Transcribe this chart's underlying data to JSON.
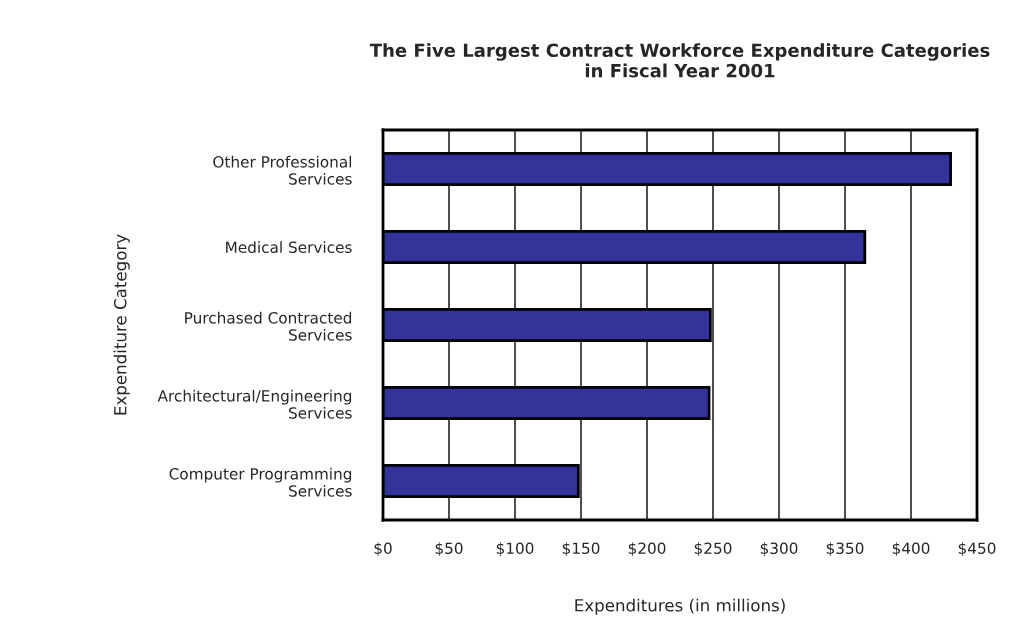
{
  "chart_data": {
    "type": "bar",
    "orientation": "horizontal",
    "title": "The Five Largest Contract Workforce Expenditure Categories\nin Fiscal Year 2001",
    "xlabel": "Expenditures (in millions)",
    "ylabel": "Expenditure Category",
    "categories": [
      "Other Professional\nServices",
      "Medical Services",
      "Purchased Contracted\nServices",
      "Architectural/Engineering\nServices",
      "Computer Programming\nServices"
    ],
    "values": [
      430,
      365,
      248,
      247,
      148
    ],
    "color": "#333399",
    "xlim": [
      0,
      450
    ],
    "xticks": [
      {
        "value": 0,
        "label": "$0"
      },
      {
        "value": 50,
        "label": "$50"
      },
      {
        "value": 100,
        "label": "$100"
      },
      {
        "value": 150,
        "label": "$150"
      },
      {
        "value": 200,
        "label": "$200"
      },
      {
        "value": 250,
        "label": "$250"
      },
      {
        "value": 300,
        "label": "$300"
      },
      {
        "value": 350,
        "label": "$350"
      },
      {
        "value": 400,
        "label": "$400"
      },
      {
        "value": 450,
        "label": "$450"
      }
    ],
    "grid": "x",
    "legend": false
  }
}
